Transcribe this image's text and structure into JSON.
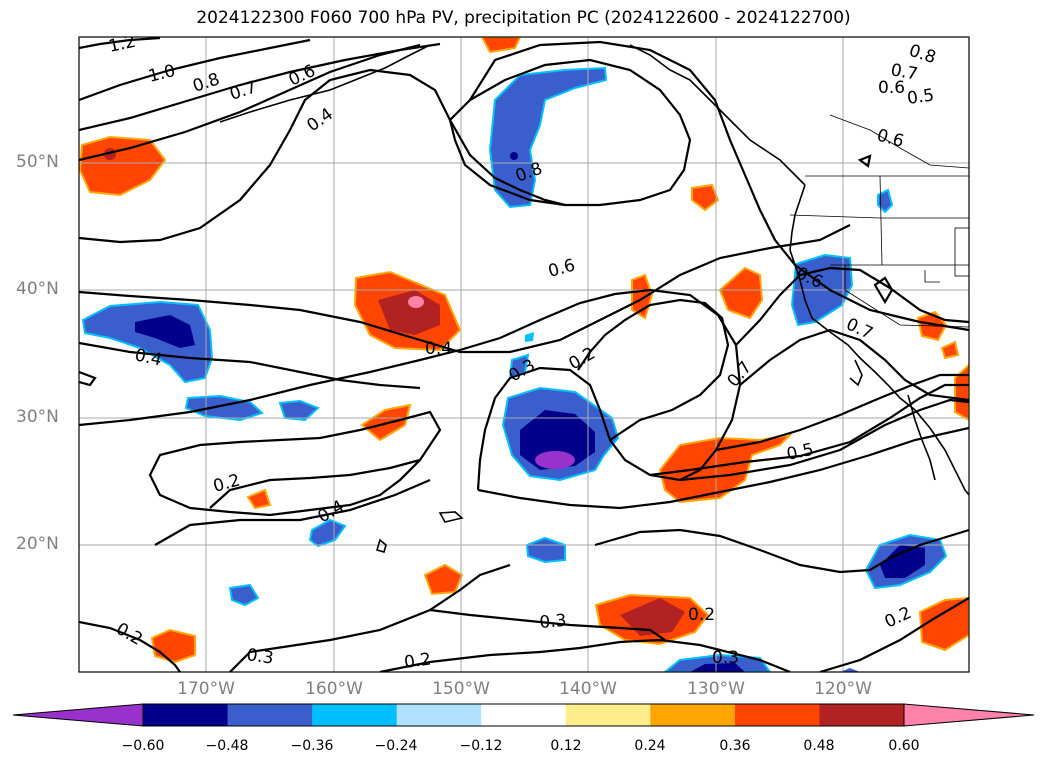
{
  "title": "2024122300 F060 700 hPa PV, precipitation PC (2024122600 - 2024122700)",
  "lat_labels": [
    "50°N",
    "40°N",
    "30°N",
    "20°N"
  ],
  "lon_labels": [
    "170°W",
    "160°W",
    "150°W",
    "140°W",
    "130°W",
    "120°W"
  ],
  "colorbar": {
    "ticks": [
      "−0.60",
      "−0.48",
      "−0.36",
      "−0.24",
      "−0.12",
      "0.12",
      "0.24",
      "0.36",
      "0.48",
      "0.60"
    ],
    "colors": [
      "#9932cc",
      "#00008b",
      "#3a5fcd",
      "#00bfff",
      "#b0e2ff",
      "#ffffff",
      "#ffec8b",
      "#ffa500",
      "#ff4500",
      "#b22222",
      "#ff82ab"
    ]
  },
  "contour_labels": [
    "1.2",
    "1.0",
    "0.8",
    "0.7",
    "0.6",
    "0.4",
    "0.8",
    "0.7",
    "0.6",
    "0.5",
    "0.6",
    "0.8",
    "0.6",
    "0.6",
    "0.7",
    "0.4",
    "0.4",
    "0.3",
    "0.2",
    "0.7",
    "0.5",
    "0.2",
    "0.4",
    "0.3",
    "0.2",
    "0.2",
    "0.3",
    "0.2",
    "0.3",
    "0.2"
  ],
  "layers": [
    "700 hPa PV contours",
    "precipitation PC shading",
    "coastlines",
    "state borders",
    "graticule"
  ]
}
